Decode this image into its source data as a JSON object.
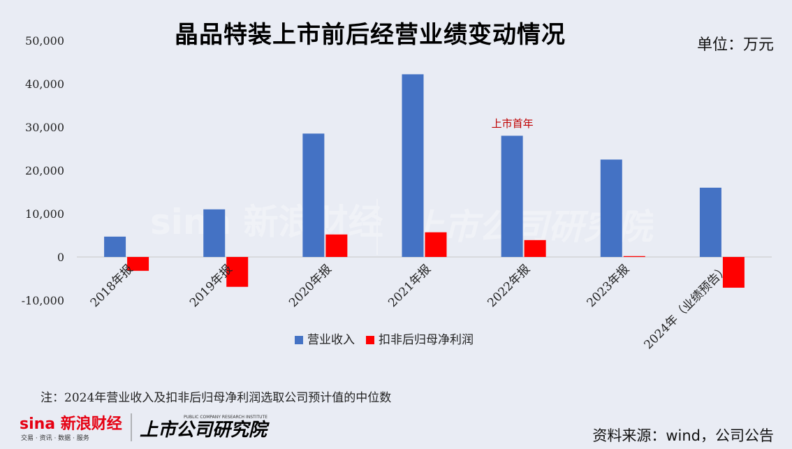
{
  "header": {
    "title": "晶品特装上市前后经营业绩变动情况",
    "unit": "单位：万元"
  },
  "footer": {
    "note": "注：2024年营业收入及扣非后归母净利润选取公司预计值的中位数",
    "source": "资料来源：wind，公司公告",
    "logo_sina_text": "sina 新浪财经",
    "logo_sina_sub": "交易 · 资讯 · 数据 · 服务",
    "logo_research_text": "上市公司研究院",
    "logo_research_sub": "PUBLIC COMPANY RESEARCH INSTITUTE"
  },
  "colors": {
    "revenue": "#4472c4",
    "profit": "#ff0000",
    "annotation": "#c00000"
  },
  "chart_data": {
    "type": "bar",
    "title": "晶品特装上市前后经营业绩变动情况",
    "xlabel": "",
    "ylabel": "",
    "ylim": [
      -10000,
      50000
    ],
    "yticks": [
      -10000,
      0,
      10000,
      20000,
      30000,
      40000,
      50000
    ],
    "ytick_labels": [
      "-10,000",
      "0",
      "10,000",
      "20,000",
      "30,000",
      "40,000",
      "50,000"
    ],
    "grid": false,
    "legend_position": "bottom",
    "categories": [
      "2018年报",
      "2019年报",
      "2020年报",
      "2021年报",
      "2022年报",
      "2023年报",
      "2024年（业绩预告）"
    ],
    "series": [
      {
        "name": "营业收入",
        "values": [
          4700,
          11000,
          28500,
          42200,
          28000,
          22500,
          16000
        ]
      },
      {
        "name": "扣非后归母净利润",
        "values": [
          -3200,
          -6900,
          5200,
          5700,
          3900,
          200,
          -7100
        ]
      }
    ],
    "annotations": [
      {
        "text": "上市首年",
        "category": "2022年报"
      }
    ]
  }
}
